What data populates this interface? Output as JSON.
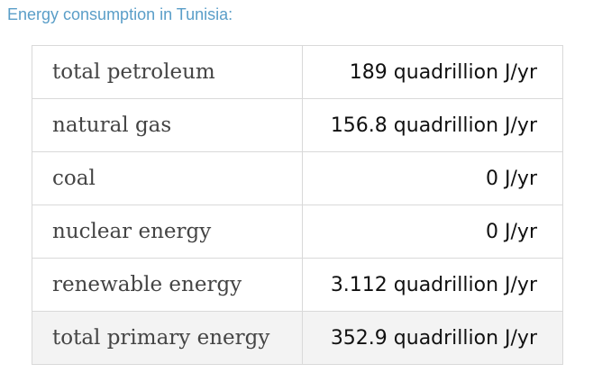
{
  "caption": "Energy consumption in Tunisia:",
  "rows": [
    {
      "label": "total petroleum",
      "value": "189 quadrillion J/yr"
    },
    {
      "label": "natural gas",
      "value": "156.8 quadrillion J/yr"
    },
    {
      "label": "coal",
      "value": "0 J/yr"
    },
    {
      "label": "nuclear energy",
      "value": "0 J/yr"
    },
    {
      "label": "renewable energy",
      "value": "3.112 quadrillion J/yr"
    },
    {
      "label": "total primary energy",
      "value": "352.9 quadrillion J/yr"
    }
  ]
}
